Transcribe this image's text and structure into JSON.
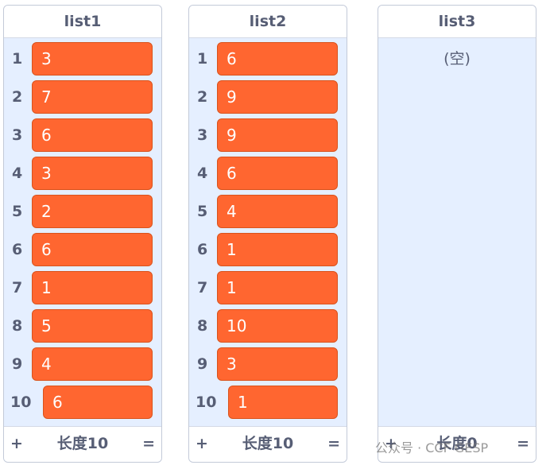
{
  "lists": [
    {
      "title": "list1",
      "items": [
        3,
        7,
        6,
        3,
        2,
        6,
        1,
        5,
        4,
        6
      ],
      "indices": [
        1,
        2,
        3,
        4,
        5,
        6,
        7,
        8,
        9,
        10
      ],
      "footer": {
        "add": "+",
        "length": "长度10",
        "resize": "="
      }
    },
    {
      "title": "list2",
      "items": [
        6,
        9,
        9,
        6,
        4,
        1,
        1,
        10,
        3,
        1
      ],
      "indices": [
        1,
        2,
        3,
        4,
        5,
        6,
        7,
        8,
        9,
        10
      ],
      "footer": {
        "add": "+",
        "length": "长度10",
        "resize": "="
      }
    },
    {
      "title": "list3",
      "items": [],
      "indices": [],
      "empty": "(空)",
      "footer": {
        "add": "+",
        "length": "长度0",
        "resize": "="
      }
    }
  ],
  "watermark": "公众号 · CCF GESP"
}
